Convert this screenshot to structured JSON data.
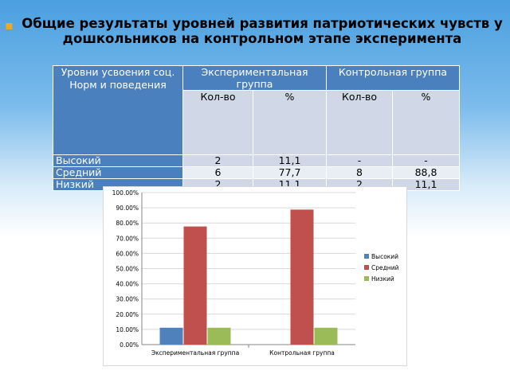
{
  "slide": {
    "title": "Общие результаты уровней развития патриотических чувств у дошкольников на контрольном  этапе эксперимента"
  },
  "table": {
    "corner_header": "Уровни усвоения соц. Норм и поведения",
    "group_headers": [
      "Экспериментальная группа",
      "Контрольная группа"
    ],
    "sub_headers": [
      "Кол-во",
      "%",
      "Кол-во",
      "%"
    ],
    "rows": [
      {
        "label": "Высокий",
        "values": [
          "2",
          "11,1",
          "-",
          "-"
        ]
      },
      {
        "label": "Средний",
        "values": [
          "6",
          "77,7",
          "8",
          "88,8"
        ]
      },
      {
        "label": "Низкий",
        "values": [
          "2",
          "11,1",
          "2",
          "11,1"
        ]
      }
    ]
  },
  "chart_data": {
    "type": "bar",
    "categories": [
      "Экспериментальная группа",
      "Контрольная группа"
    ],
    "series": [
      {
        "name": "Высокий",
        "color": "#4f81bd",
        "values": [
          11.1,
          0
        ]
      },
      {
        "name": "Средний",
        "color": "#c0504d",
        "values": [
          77.7,
          88.8
        ]
      },
      {
        "name": "Низкий",
        "color": "#9bbb59",
        "values": [
          11.1,
          11.1
        ]
      }
    ],
    "ylim": [
      0,
      100
    ],
    "yticks": [
      "0.00%",
      "10.00%",
      "20.00%",
      "30.00%",
      "40.00%",
      "50.00%",
      "60.00%",
      "70.00%",
      "80.00%",
      "90.00%",
      "100.00%"
    ],
    "legend": "right",
    "grid": true
  }
}
